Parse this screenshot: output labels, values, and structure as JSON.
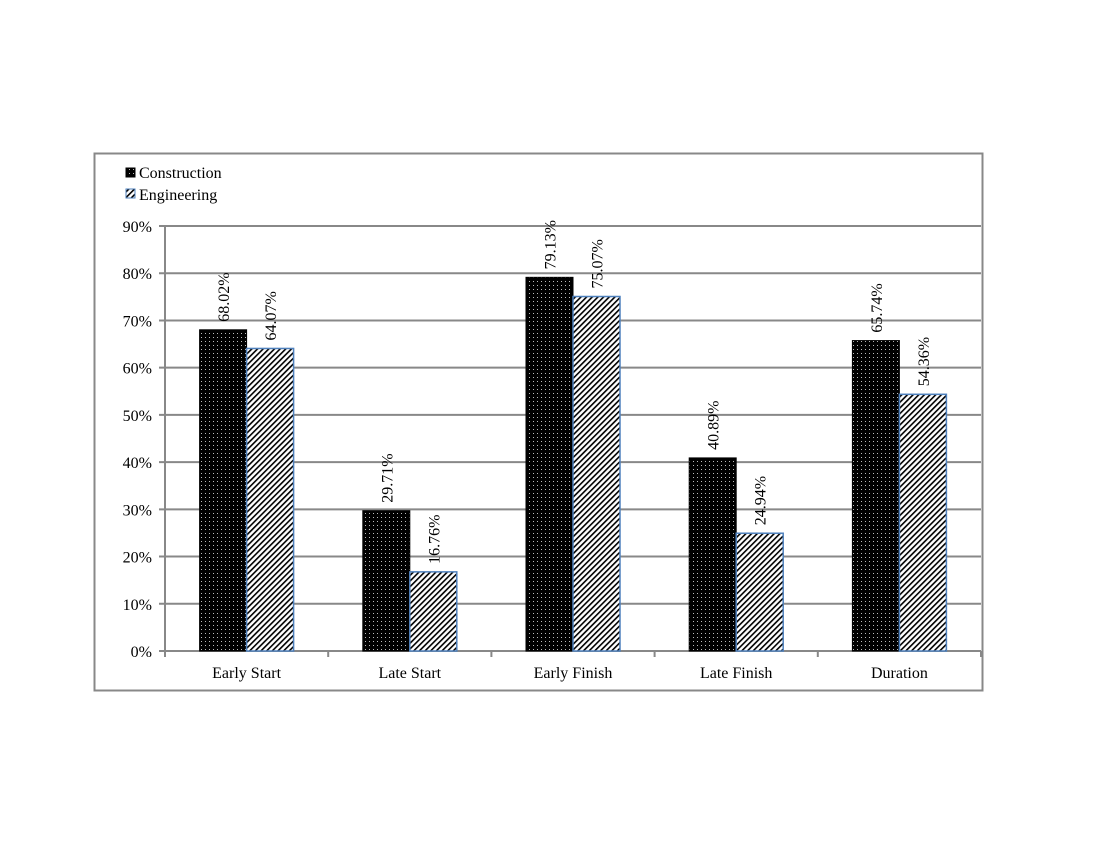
{
  "chart_data": {
    "type": "bar",
    "title": "",
    "xlabel": "",
    "ylabel": "",
    "categories": [
      "Early Start",
      "Late Start",
      "Early Finish",
      "Late Finish",
      "Duration"
    ],
    "series": [
      {
        "name": "Construction",
        "values": [
          68.02,
          29.71,
          79.13,
          40.89,
          65.74
        ],
        "labels": [
          "68.02%",
          "29.71%",
          "79.13%",
          "40.89%",
          "65.74%"
        ],
        "color": "#000000",
        "pattern": "dotted"
      },
      {
        "name": "Engineering",
        "values": [
          64.07,
          16.76,
          75.07,
          24.94,
          54.36
        ],
        "labels": [
          "64.07%",
          "16.76%",
          "75.07%",
          "24.94%",
          "54.36%"
        ],
        "color": "#4f81bd",
        "pattern": "diagonal-hatch"
      }
    ],
    "ylim": [
      0,
      90
    ],
    "yticks": [
      "0%",
      "10%",
      "20%",
      "30%",
      "40%",
      "50%",
      "60%",
      "70%",
      "80%",
      "90%"
    ],
    "grid": true,
    "legend": "top-left"
  }
}
